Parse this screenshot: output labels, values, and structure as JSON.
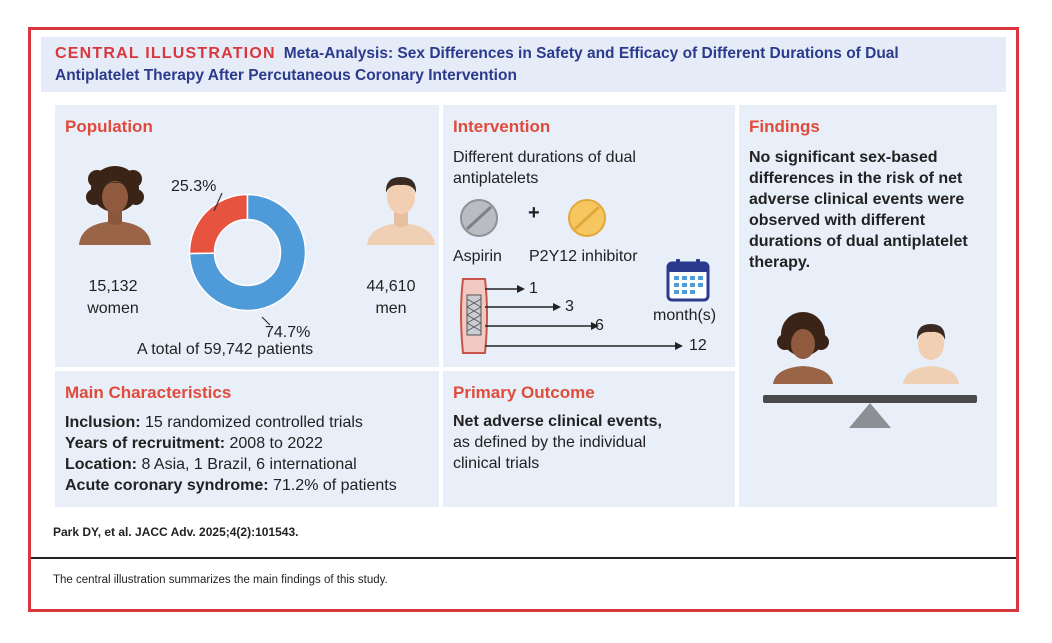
{
  "header": {
    "label": "CENTRAL ILLUSTRATION",
    "title_line1": "Meta-Analysis: Sex Differences in Safety and Efficacy of Different Durations of Dual",
    "title_line2": "Antiplatelet Therapy After Percutaneous Coronary Intervention"
  },
  "population": {
    "title": "Population",
    "women_count": "15,132",
    "women_label": "women",
    "men_count": "44,610",
    "men_label": "men",
    "women_pct_label": "25.3%",
    "men_pct_label": "74.7%",
    "total": "A total of 59,742 patients",
    "colors": {
      "women": "#e8533f",
      "men": "#4f9ad8"
    }
  },
  "chart_data": {
    "type": "pie",
    "title": "",
    "categories": [
      "women",
      "men"
    ],
    "values": [
      25.3,
      74.7
    ],
    "labels": [
      "25.3%",
      "74.7%"
    ]
  },
  "intervention": {
    "title": "Intervention",
    "desc_line1": "Different durations of dual",
    "desc_line2": "antiplatelets",
    "plus": "+",
    "drug1": "Aspirin",
    "drug2": "P2Y12 inhibitor",
    "durations": [
      "1",
      "3",
      "6",
      "12"
    ],
    "months_label": "month(s)"
  },
  "findings": {
    "title": "Findings",
    "lines": [
      "No significant sex-based",
      "differences in the risk of net",
      "adverse clinical events were",
      "observed with different",
      "durations of dual antiplatelet",
      "therapy."
    ]
  },
  "characteristics": {
    "title": "Main Characteristics",
    "items": [
      {
        "label": "Inclusion:",
        "value": " 15 randomized controlled trials"
      },
      {
        "label": "Years of recruitment:",
        "value": " 2008 to 2022"
      },
      {
        "label": "Location:",
        "value": " 8 Asia, 1 Brazil, 6 international"
      },
      {
        "label": "Acute coronary syndrome:",
        "value": " 71.2% of patients"
      }
    ]
  },
  "outcome": {
    "title": "Primary Outcome",
    "line1": "Net adverse clinical events,",
    "line2": "as defined by the individual",
    "line3": "clinical trials"
  },
  "citation": "Park DY, et al. JACC Adv. 2025;4(2):101543.",
  "footer": "The central illustration summarizes the main findings of this study."
}
